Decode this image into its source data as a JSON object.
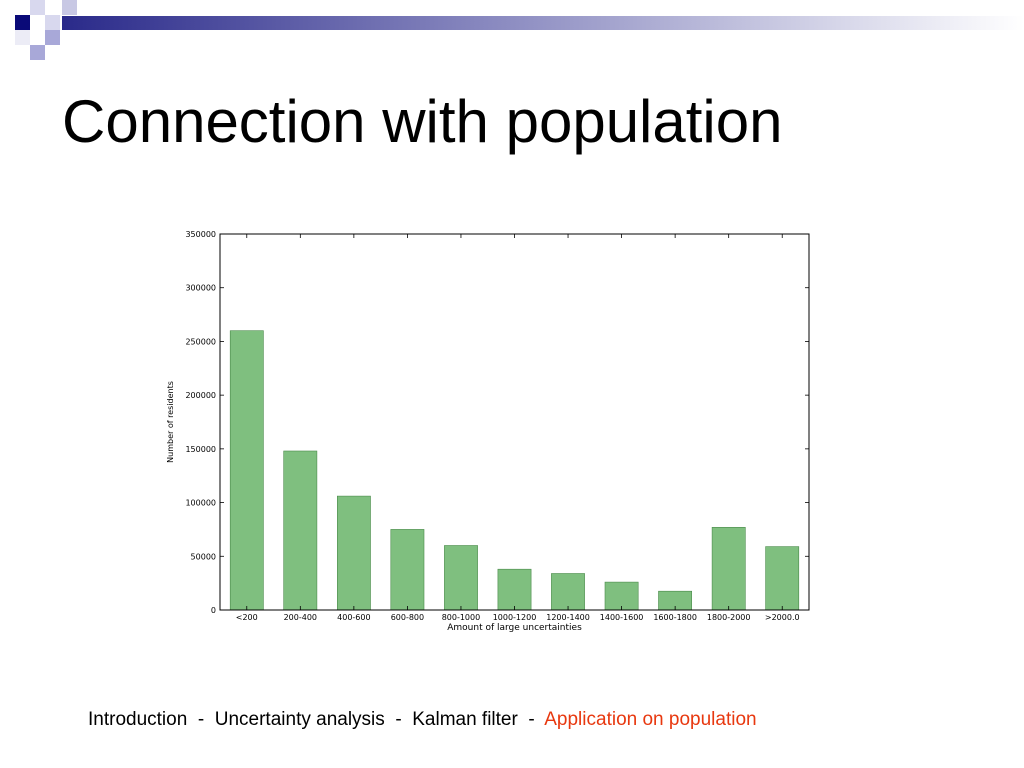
{
  "slide": {
    "title": "Connection with population"
  },
  "footer": {
    "items": [
      "Introduction",
      "Uncertainty analysis",
      "Kalman filter",
      "Application on population"
    ],
    "separator": "-",
    "active_color": "#e8380f"
  },
  "theme": {
    "accent_dark": "#0a0a78",
    "accent_light": "#a8a8d8",
    "bar_fill": "#7fbf7f",
    "bar_stroke": "#4a8a4a"
  },
  "chart_data": {
    "type": "bar",
    "title": "",
    "xlabel": "Amount of large uncertainties",
    "ylabel": "Number of residents",
    "categories": [
      "<200",
      "200-400",
      "400-600",
      "600-800",
      "800-1000",
      "1000-1200",
      "1200-1400",
      "1400-1600",
      "1600-1800",
      "1800-2000",
      ">2000.0"
    ],
    "values": [
      260000,
      148000,
      106000,
      75000,
      60000,
      38000,
      34000,
      26000,
      17500,
      77000,
      59000
    ],
    "ylim": [
      0,
      350000
    ],
    "yticks": [
      0,
      50000,
      100000,
      150000,
      200000,
      250000,
      300000,
      350000
    ],
    "ytick_labels": [
      "0",
      "50000",
      "100000",
      "150000",
      "200000",
      "250000",
      "300000",
      "350000"
    ],
    "grid": false,
    "legend": "none"
  }
}
